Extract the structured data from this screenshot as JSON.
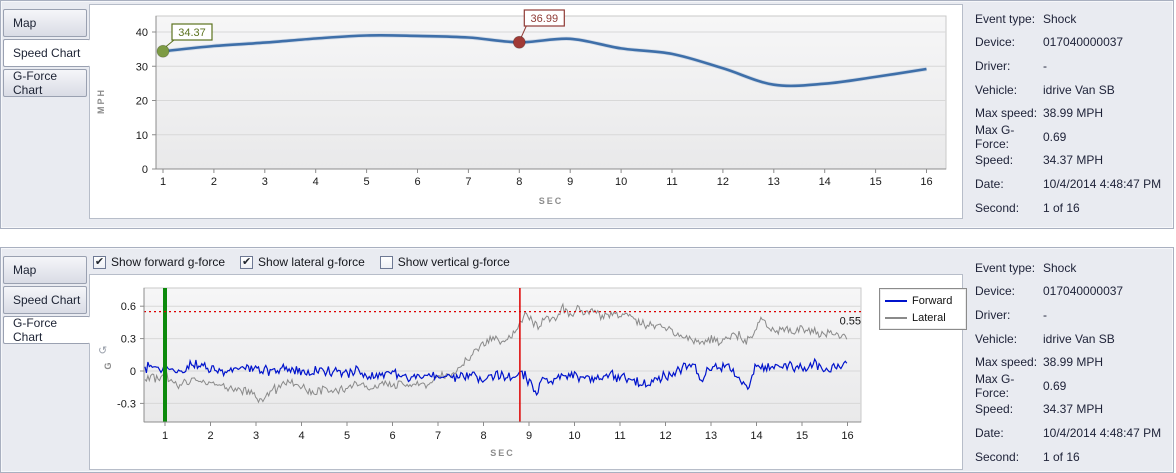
{
  "tabs": [
    {
      "label": "Map"
    },
    {
      "label": "Speed Chart"
    },
    {
      "label": "G-Force Chart"
    }
  ],
  "top_panel": {
    "selected_tab": 1
  },
  "bottom_panel": {
    "selected_tab": 2,
    "checkboxes": [
      {
        "name": "show-forward-gforce",
        "label": "Show forward g-force",
        "checked": true
      },
      {
        "name": "show-lateral-gforce",
        "label": "Show lateral g-force",
        "checked": true
      },
      {
        "name": "show-vertical-gforce",
        "label": "Show vertical g-force",
        "checked": false
      }
    ]
  },
  "event_info": {
    "rows": [
      {
        "label": "Event type:",
        "value": "Shock"
      },
      {
        "label": "Device:",
        "value": "017040000037"
      },
      {
        "label": "Driver:",
        "value": "-"
      },
      {
        "label": "Vehicle:",
        "value": "idrive Van SB"
      },
      {
        "label": "Max speed:",
        "value": "38.99 MPH"
      },
      {
        "label": "Max G-Force:",
        "value": "0.69"
      },
      {
        "label": "Speed:",
        "value": "34.37 MPH"
      },
      {
        "label": "Date:",
        "value": "10/4/2014 4:48:47 PM"
      },
      {
        "label": "Second:",
        "value": "1 of 16"
      }
    ]
  },
  "chart_data": [
    {
      "id": "speed",
      "type": "line",
      "title": "",
      "xlabel": "SEC",
      "ylabel": "MPH",
      "x": [
        1,
        2,
        3,
        4,
        5,
        6,
        7,
        8,
        9,
        10,
        11,
        12,
        13,
        14,
        15,
        16
      ],
      "values": [
        34.37,
        35.9,
        36.9,
        38.1,
        38.99,
        38.85,
        38.4,
        36.99,
        38.0,
        35.2,
        33.6,
        29.4,
        24.6,
        24.9,
        26.9,
        29.2
      ],
      "ylim": [
        0,
        44.5
      ],
      "yticks": [
        0,
        10,
        20,
        30,
        40
      ],
      "xticks": [
        1,
        2,
        3,
        4,
        5,
        6,
        7,
        8,
        9,
        10,
        11,
        12,
        13,
        14,
        15,
        16
      ],
      "grid": "horizontal",
      "line_color": "#3e6fa9",
      "annotations": [
        {
          "x": 1,
          "value": 34.37,
          "label": "34.37",
          "dot_color": "#7d9b44",
          "text_color": "#5c731f"
        },
        {
          "x": 8,
          "value": 36.99,
          "label": "36.99",
          "dot_color": "#a03a36",
          "text_color": "#8f3a35"
        }
      ]
    },
    {
      "id": "gforce",
      "type": "line",
      "title": "",
      "xlabel": "SEC",
      "ylabel": "G",
      "ylim": [
        -0.47,
        0.77
      ],
      "yticks": [
        -0.3,
        0,
        0.3,
        0.6
      ],
      "xticks": [
        1,
        2,
        3,
        4,
        5,
        6,
        7,
        8,
        9,
        10,
        11,
        12,
        13,
        14,
        15,
        16
      ],
      "grid": "horizontal",
      "legend": {
        "position": "right",
        "entries": [
          "Forward",
          "Lateral"
        ]
      },
      "threshold": {
        "value": 0.55,
        "label": "0.55",
        "color": "#dd0000"
      },
      "vertical_markers": [
        {
          "name": "start-second-marker",
          "x": 1,
          "color": "#0c8a0c",
          "width": 4
        },
        {
          "name": "impact-second-marker",
          "x": 8.8,
          "color": "#dd0000",
          "width": 1.5
        }
      ],
      "series": [
        {
          "name": "Forward",
          "color": "#0013cc",
          "noise": 0.05,
          "trend": [
            [
              0.55,
              0.03
            ],
            [
              1,
              0.04
            ],
            [
              1.3,
              0.0
            ],
            [
              1.6,
              0.05
            ],
            [
              2,
              0.02
            ],
            [
              2.4,
              -0.01
            ],
            [
              2.8,
              0.04
            ],
            [
              3.2,
              0.0
            ],
            [
              3.6,
              0.02
            ],
            [
              4,
              -0.02
            ],
            [
              4.4,
              0.02
            ],
            [
              4.8,
              -0.03
            ],
            [
              5.2,
              0.01
            ],
            [
              5.6,
              -0.04
            ],
            [
              6,
              -0.02
            ],
            [
              6.4,
              -0.06
            ],
            [
              6.8,
              -0.03
            ],
            [
              7.2,
              -0.06
            ],
            [
              7.6,
              -0.04
            ],
            [
              8,
              -0.08
            ],
            [
              8.3,
              -0.04
            ],
            [
              8.6,
              -0.06
            ],
            [
              8.85,
              0.0
            ],
            [
              9.0,
              -0.1
            ],
            [
              9.15,
              -0.2
            ],
            [
              9.3,
              -0.07
            ],
            [
              9.5,
              -0.12
            ],
            [
              9.7,
              -0.04
            ],
            [
              10,
              -0.05
            ],
            [
              10.4,
              -0.08
            ],
            [
              10.8,
              -0.04
            ],
            [
              11.2,
              -0.08
            ],
            [
              11.6,
              -0.14
            ],
            [
              11.9,
              -0.06
            ],
            [
              12.2,
              -0.02
            ],
            [
              12.4,
              0.04
            ],
            [
              12.6,
              0.05
            ],
            [
              12.8,
              -0.1
            ],
            [
              13,
              0.03
            ],
            [
              13.4,
              0.05
            ],
            [
              13.8,
              -0.18
            ],
            [
              14.0,
              0.08
            ],
            [
              14.3,
              0.02
            ],
            [
              14.6,
              0.06
            ],
            [
              15,
              0.03
            ],
            [
              15.3,
              0.06
            ],
            [
              15.6,
              0.0
            ],
            [
              15.8,
              0.05
            ],
            [
              16,
              0.04
            ]
          ]
        },
        {
          "name": "Lateral",
          "color": "#8a8a8a",
          "noise": 0.045,
          "trend": [
            [
              0.55,
              -0.06
            ],
            [
              1,
              -0.05
            ],
            [
              1.3,
              -0.12
            ],
            [
              1.6,
              -0.08
            ],
            [
              2,
              -0.1
            ],
            [
              2.3,
              -0.14
            ],
            [
              2.6,
              -0.17
            ],
            [
              2.9,
              -0.2
            ],
            [
              3.05,
              -0.28
            ],
            [
              3.2,
              -0.25
            ],
            [
              3.4,
              -0.18
            ],
            [
              3.6,
              -0.12
            ],
            [
              3.8,
              -0.1
            ],
            [
              4,
              -0.14
            ],
            [
              4.2,
              -0.2
            ],
            [
              4.5,
              -0.17
            ],
            [
              4.8,
              -0.2
            ],
            [
              5,
              -0.16
            ],
            [
              5.2,
              -0.12
            ],
            [
              5.5,
              -0.15
            ],
            [
              5.8,
              -0.11
            ],
            [
              6.1,
              -0.14
            ],
            [
              6.4,
              -0.1
            ],
            [
              6.7,
              -0.12
            ],
            [
              7,
              -0.07
            ],
            [
              7.2,
              -0.04
            ],
            [
              7.4,
              0.0
            ],
            [
              7.6,
              0.08
            ],
            [
              7.8,
              0.16
            ],
            [
              8,
              0.26
            ],
            [
              8.2,
              0.3
            ],
            [
              8.4,
              0.27
            ],
            [
              8.6,
              0.3
            ],
            [
              8.75,
              0.4
            ],
            [
              8.9,
              0.52
            ],
            [
              9.05,
              0.48
            ],
            [
              9.2,
              0.42
            ],
            [
              9.4,
              0.5
            ],
            [
              9.6,
              0.47
            ],
            [
              9.75,
              0.57
            ],
            [
              9.9,
              0.5
            ],
            [
              10.05,
              0.58
            ],
            [
              10.2,
              0.52
            ],
            [
              10.4,
              0.56
            ],
            [
              10.6,
              0.5
            ],
            [
              10.8,
              0.54
            ],
            [
              11,
              0.5
            ],
            [
              11.2,
              0.53
            ],
            [
              11.4,
              0.46
            ],
            [
              11.6,
              0.44
            ],
            [
              11.8,
              0.42
            ],
            [
              12,
              0.4
            ],
            [
              12.2,
              0.36
            ],
            [
              12.4,
              0.33
            ],
            [
              12.6,
              0.3
            ],
            [
              12.8,
              0.27
            ],
            [
              13,
              0.29
            ],
            [
              13.2,
              0.27
            ],
            [
              13.4,
              0.3
            ],
            [
              13.6,
              0.33
            ],
            [
              13.8,
              0.28
            ],
            [
              13.95,
              0.35
            ],
            [
              14.1,
              0.5
            ],
            [
              14.25,
              0.4
            ],
            [
              14.4,
              0.36
            ],
            [
              14.6,
              0.4
            ],
            [
              14.8,
              0.36
            ],
            [
              15,
              0.4
            ],
            [
              15.2,
              0.36
            ],
            [
              15.4,
              0.34
            ],
            [
              15.6,
              0.36
            ],
            [
              15.8,
              0.32
            ],
            [
              16,
              0.3
            ]
          ]
        }
      ]
    }
  ]
}
